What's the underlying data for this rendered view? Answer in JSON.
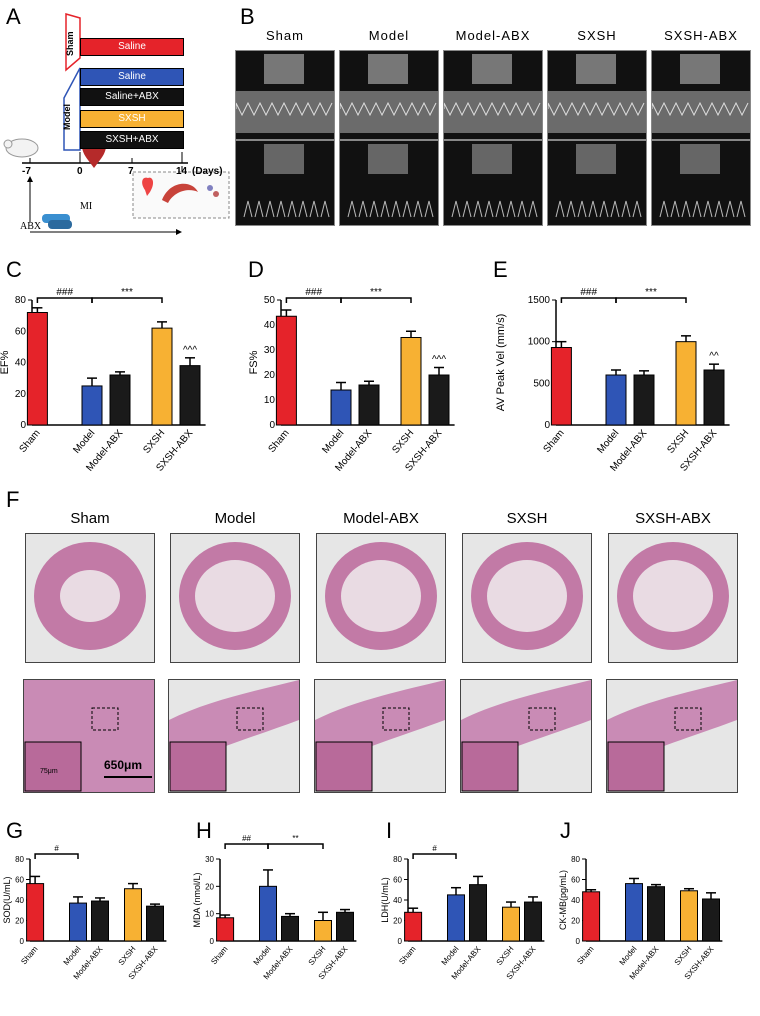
{
  "panels": {
    "A": "A",
    "B": "B",
    "C": "C",
    "D": "D",
    "E": "E",
    "F": "F",
    "G": "G",
    "H": "H",
    "I": "I",
    "J": "J"
  },
  "colors": {
    "sham": "#e5232a",
    "model": "#2f55b6",
    "model_abx": "#1a1a1a",
    "sxsh": "#f7b133",
    "sxsh_abx": "#1a1a1a"
  },
  "panelA": {
    "sham_label": "Sham",
    "model_label": "Model",
    "boxes": [
      {
        "label": "Saline",
        "color": "#e5232a"
      },
      {
        "label": "Saline",
        "color": "#2f55b6"
      },
      {
        "label": "Saline+ABX",
        "color": "#111111"
      },
      {
        "label": "SXSH",
        "color": "#f7b133"
      },
      {
        "label": "SXSH+ABX",
        "color": "#111111"
      }
    ],
    "ticks": [
      "-7",
      "0",
      "7",
      "14"
    ],
    "days_label": "(Days)",
    "mi_label": "MI",
    "abx_label": "ABX"
  },
  "panelB": {
    "groups": [
      "Sham",
      "Model",
      "Model-ABX",
      "SXSH",
      "SXSH-ABX"
    ]
  },
  "panelF": {
    "groups": [
      "Sham",
      "Model",
      "Model-ABX",
      "SXSH",
      "SXSH-ABX"
    ],
    "scale_bar": "650μm",
    "inset_scale": "75μm"
  },
  "charts": {
    "C": {
      "ylabel": "EF%",
      "ticks": [
        "0",
        "20",
        "40",
        "60",
        "80"
      ],
      "ymax": 80,
      "categories": [
        "Sham",
        "Model",
        "Model-ABX",
        "SXSH",
        "SXSH-ABX"
      ],
      "values": [
        72,
        25,
        32,
        62,
        38
      ],
      "errors": [
        3,
        5,
        2,
        4,
        5
      ],
      "sig1": "###",
      "sig2": "***",
      "sig3": "^^^"
    },
    "D": {
      "ylabel": "FS%",
      "ticks": [
        "0",
        "10",
        "20",
        "30",
        "40",
        "50"
      ],
      "ymax": 50,
      "categories": [
        "Sham",
        "Model",
        "Model-ABX",
        "SXSH",
        "SXSH-ABX"
      ],
      "values": [
        43.5,
        14,
        16,
        35,
        20
      ],
      "errors": [
        2.5,
        3,
        1.5,
        2.5,
        3
      ],
      "sig1": "###",
      "sig2": "***",
      "sig3": "^^^"
    },
    "E": {
      "ylabel": "AV Peak Vel (mm/s)",
      "ticks": [
        "0",
        "500",
        "1000",
        "1500"
      ],
      "ymax": 1500,
      "categories": [
        "Sham",
        "Model",
        "Model-ABX",
        "SXSH",
        "SXSH-ABX"
      ],
      "values": [
        930,
        600,
        600,
        1000,
        660
      ],
      "errors": [
        70,
        60,
        50,
        70,
        70
      ],
      "sig1": "###",
      "sig2": "***",
      "sig3": "^^"
    },
    "G": {
      "ylabel": "SOD(U/mL)",
      "ticks": [
        "0",
        "20",
        "40",
        "60",
        "80"
      ],
      "ymax": 80,
      "categories": [
        "Sham",
        "Model",
        "Model-ABX",
        "SXSH",
        "SXSH-ABX"
      ],
      "values": [
        56,
        37,
        39,
        51,
        34
      ],
      "errors": [
        7,
        6,
        3,
        5,
        2
      ],
      "sig1": "#",
      "sig2": "",
      "sig3": ""
    },
    "H": {
      "ylabel": "MDA (nmol/L)",
      "ticks": [
        "0",
        "10",
        "20",
        "30"
      ],
      "ymax": 30,
      "categories": [
        "Sham",
        "Model",
        "Model-ABX",
        "SXSH",
        "SXSH-ABX"
      ],
      "values": [
        8.5,
        20,
        9,
        7.5,
        10.5
      ],
      "errors": [
        1,
        6,
        1,
        3,
        1
      ],
      "sig1": "##",
      "sig2": "**",
      "sig3": ""
    },
    "I": {
      "ylabel": "LDH(U/mL)",
      "ticks": [
        "0",
        "20",
        "40",
        "60",
        "80"
      ],
      "ymax": 80,
      "categories": [
        "Sham",
        "Model",
        "Model-ABX",
        "SXSH",
        "SXSH-ABX"
      ],
      "values": [
        28,
        45,
        55,
        33,
        38
      ],
      "errors": [
        4,
        7,
        8,
        5,
        5
      ],
      "sig1": "#",
      "sig2": "",
      "sig3": ""
    },
    "J": {
      "ylabel": "CK-MB(pg/mL)",
      "ticks": [
        "0",
        "20",
        "40",
        "60",
        "80"
      ],
      "ymax": 80,
      "categories": [
        "Sham",
        "Model",
        "Model-ABX",
        "SXSH",
        "SXSH-ABX"
      ],
      "values": [
        48,
        56,
        53,
        49,
        41
      ],
      "errors": [
        2,
        5,
        2,
        2,
        6
      ],
      "sig1": "",
      "sig2": "",
      "sig3": ""
    }
  }
}
